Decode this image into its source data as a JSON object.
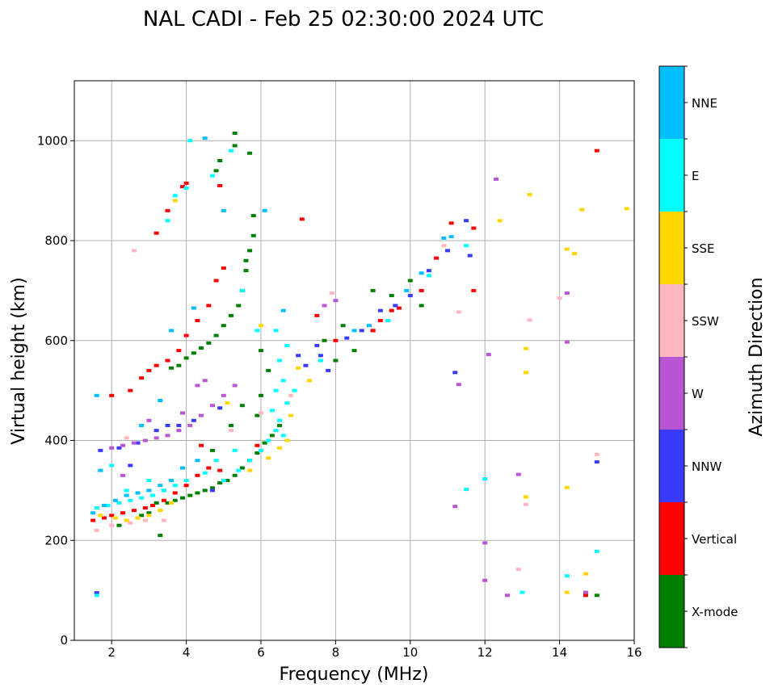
{
  "chart_data": {
    "type": "scatter",
    "title": "NAL CADI - Feb 25 02:30:00 2024 UTC",
    "xlabel": "Frequency (MHz)",
    "ylabel": "Virtual height (km)",
    "xlim": [
      1,
      16
    ],
    "ylim": [
      0,
      1120
    ],
    "xticks": [
      2,
      4,
      6,
      8,
      10,
      12,
      14,
      16
    ],
    "yticks": [
      0,
      200,
      400,
      600,
      800,
      1000
    ],
    "grid": true,
    "colorbar": {
      "label": "Azimuth Direction",
      "categories": [
        {
          "name": "X-mode",
          "color": "#008000"
        },
        {
          "name": "Vertical",
          "color": "#ff0000"
        },
        {
          "name": "NNW",
          "color": "#3a3aff"
        },
        {
          "name": "W",
          "color": "#ba55d3"
        },
        {
          "name": "SSW",
          "color": "#ffb6c1"
        },
        {
          "name": "SSE",
          "color": "#ffd700"
        },
        {
          "name": "E",
          "color": "#00ffff"
        },
        {
          "name": "NNE",
          "color": "#00bfff"
        }
      ]
    },
    "series": [
      {
        "name": "X-mode",
        "points": [
          [
            3.2,
            275
          ],
          [
            3.5,
            275
          ],
          [
            3.7,
            280
          ],
          [
            3.9,
            285
          ],
          [
            4.1,
            290
          ],
          [
            4.3,
            295
          ],
          [
            4.5,
            300
          ],
          [
            4.7,
            305
          ],
          [
            4.9,
            315
          ],
          [
            5.1,
            320
          ],
          [
            5.3,
            330
          ],
          [
            5.5,
            345
          ],
          [
            5.7,
            360
          ],
          [
            5.9,
            375
          ],
          [
            6.1,
            395
          ],
          [
            6.3,
            410
          ],
          [
            6.5,
            430
          ],
          [
            3.6,
            545
          ],
          [
            3.8,
            550
          ],
          [
            4.0,
            565
          ],
          [
            4.2,
            575
          ],
          [
            4.4,
            585
          ],
          [
            4.6,
            595
          ],
          [
            4.8,
            610
          ],
          [
            5.0,
            630
          ],
          [
            5.2,
            650
          ],
          [
            5.4,
            670
          ],
          [
            5.5,
            700
          ],
          [
            5.6,
            740
          ],
          [
            5.7,
            780
          ],
          [
            5.8,
            810
          ],
          [
            5.6,
            760
          ],
          [
            5.3,
            990
          ],
          [
            4.9,
            960
          ],
          [
            4.8,
            940
          ],
          [
            5.3,
            1015
          ],
          [
            3.3,
            210
          ],
          [
            6.0,
            580
          ],
          [
            6.2,
            540
          ],
          [
            6.0,
            490
          ],
          [
            5.9,
            450
          ],
          [
            8.0,
            560
          ],
          [
            8.5,
            580
          ],
          [
            9.0,
            620
          ],
          [
            9.0,
            700
          ],
          [
            9.5,
            690
          ],
          [
            10.0,
            720
          ],
          [
            10.3,
            670
          ],
          [
            8.2,
            630
          ],
          [
            7.7,
            600
          ],
          [
            5.7,
            975
          ],
          [
            5.8,
            850
          ],
          [
            5.5,
            470
          ],
          [
            5.2,
            430
          ],
          [
            4.7,
            380
          ],
          [
            2.2,
            230
          ],
          [
            2.8,
            250
          ],
          [
            3.0,
            255
          ],
          [
            15.0,
            90
          ]
        ]
      },
      {
        "name": "Vertical",
        "points": [
          [
            1.5,
            240
          ],
          [
            1.8,
            245
          ],
          [
            2.0,
            250
          ],
          [
            2.3,
            255
          ],
          [
            2.6,
            260
          ],
          [
            2.9,
            265
          ],
          [
            3.1,
            270
          ],
          [
            3.4,
            280
          ],
          [
            3.7,
            295
          ],
          [
            4.0,
            310
          ],
          [
            4.3,
            330
          ],
          [
            4.6,
            345
          ],
          [
            4.9,
            340
          ],
          [
            2.5,
            500
          ],
          [
            2.8,
            525
          ],
          [
            3.0,
            540
          ],
          [
            3.2,
            550
          ],
          [
            3.5,
            560
          ],
          [
            3.8,
            580
          ],
          [
            4.0,
            610
          ],
          [
            4.3,
            640
          ],
          [
            4.6,
            670
          ],
          [
            4.8,
            720
          ],
          [
            5.0,
            745
          ],
          [
            3.2,
            815
          ],
          [
            3.5,
            860
          ],
          [
            4.0,
            915
          ],
          [
            3.9,
            908
          ],
          [
            4.9,
            910
          ],
          [
            7.5,
            650
          ],
          [
            8.0,
            600
          ],
          [
            9.0,
            620
          ],
          [
            9.2,
            640
          ],
          [
            9.5,
            660
          ],
          [
            9.7,
            665
          ],
          [
            10.3,
            700
          ],
          [
            10.7,
            765
          ],
          [
            11.1,
            835
          ],
          [
            11.7,
            825
          ],
          [
            11.7,
            700
          ],
          [
            14.7,
            90
          ],
          [
            15.0,
            980
          ],
          [
            7.1,
            843
          ],
          [
            5.9,
            390
          ],
          [
            4.4,
            390
          ],
          [
            2.0,
            490
          ]
        ]
      },
      {
        "name": "NNW",
        "points": [
          [
            1.6,
            95
          ],
          [
            2.2,
            385
          ],
          [
            2.7,
            395
          ],
          [
            3.2,
            420
          ],
          [
            3.5,
            430
          ],
          [
            3.8,
            430
          ],
          [
            4.2,
            440
          ],
          [
            4.9,
            465
          ],
          [
            7.2,
            550
          ],
          [
            7.5,
            590
          ],
          [
            7.8,
            540
          ],
          [
            8.3,
            605
          ],
          [
            8.7,
            620
          ],
          [
            9.2,
            660
          ],
          [
            9.6,
            670
          ],
          [
            10.0,
            690
          ],
          [
            10.5,
            740
          ],
          [
            11.0,
            780
          ],
          [
            11.5,
            840
          ],
          [
            11.6,
            770
          ],
          [
            11.2,
            536
          ],
          [
            15.0,
            357
          ],
          [
            2.5,
            350
          ],
          [
            3.4,
            300
          ],
          [
            4.7,
            300
          ],
          [
            1.7,
            380
          ],
          [
            7.0,
            570
          ],
          [
            7.6,
            570
          ]
        ]
      },
      {
        "name": "W",
        "points": [
          [
            2.0,
            385
          ],
          [
            2.3,
            390
          ],
          [
            2.6,
            395
          ],
          [
            2.9,
            400
          ],
          [
            3.2,
            405
          ],
          [
            3.5,
            410
          ],
          [
            3.8,
            420
          ],
          [
            4.1,
            430
          ],
          [
            4.4,
            450
          ],
          [
            4.7,
            470
          ],
          [
            5.0,
            490
          ],
          [
            5.3,
            510
          ],
          [
            3.0,
            440
          ],
          [
            3.9,
            455
          ],
          [
            4.3,
            510
          ],
          [
            4.5,
            520
          ],
          [
            7.7,
            670
          ],
          [
            8.0,
            680
          ],
          [
            12.3,
            923
          ],
          [
            14.2,
            695
          ],
          [
            14.2,
            597
          ],
          [
            12.1,
            572
          ],
          [
            11.3,
            512
          ],
          [
            12.9,
            332
          ],
          [
            11.2,
            268
          ],
          [
            12.0,
            195
          ],
          [
            12.0,
            120
          ],
          [
            12.6,
            90
          ],
          [
            14.7,
            96
          ],
          [
            2.3,
            330
          ]
        ]
      },
      {
        "name": "SSW",
        "points": [
          [
            1.6,
            220
          ],
          [
            2.0,
            230
          ],
          [
            2.5,
            235
          ],
          [
            2.9,
            240
          ],
          [
            2.4,
            405
          ],
          [
            2.6,
            780
          ],
          [
            5.2,
            420
          ],
          [
            6.0,
            455
          ],
          [
            7.9,
            695
          ],
          [
            10.9,
            790
          ],
          [
            11.3,
            657
          ],
          [
            13.1,
            272
          ],
          [
            15.0,
            372
          ],
          [
            12.9,
            142
          ],
          [
            13.2,
            641
          ],
          [
            14.0,
            685
          ],
          [
            6.8,
            490
          ],
          [
            3.4,
            240
          ]
        ]
      },
      {
        "name": "SSE",
        "points": [
          [
            1.7,
            250
          ],
          [
            2.1,
            245
          ],
          [
            2.4,
            240
          ],
          [
            2.7,
            245
          ],
          [
            3.0,
            250
          ],
          [
            3.3,
            260
          ],
          [
            3.6,
            275
          ],
          [
            6.2,
            365
          ],
          [
            6.5,
            385
          ],
          [
            6.7,
            400
          ],
          [
            6.8,
            450
          ],
          [
            7.0,
            545
          ],
          [
            7.3,
            520
          ],
          [
            3.7,
            880
          ],
          [
            5.1,
            475
          ],
          [
            5.7,
            340
          ],
          [
            12.4,
            840
          ],
          [
            13.2,
            892
          ],
          [
            14.6,
            862
          ],
          [
            15.8,
            864
          ],
          [
            14.2,
            783
          ],
          [
            14.4,
            774
          ],
          [
            13.1,
            584
          ],
          [
            13.1,
            536
          ],
          [
            13.1,
            287
          ],
          [
            14.2,
            306
          ],
          [
            14.2,
            96
          ],
          [
            14.7,
            133
          ],
          [
            6.0,
            630
          ]
        ]
      },
      {
        "name": "E",
        "points": [
          [
            1.6,
            265
          ],
          [
            1.9,
            270
          ],
          [
            2.2,
            275
          ],
          [
            2.5,
            280
          ],
          [
            2.8,
            285
          ],
          [
            3.1,
            290
          ],
          [
            3.4,
            300
          ],
          [
            3.7,
            310
          ],
          [
            4.0,
            320
          ],
          [
            4.5,
            335
          ],
          [
            5.0,
            320
          ],
          [
            5.4,
            340
          ],
          [
            5.7,
            360
          ],
          [
            6.0,
            380
          ],
          [
            6.2,
            400
          ],
          [
            6.4,
            420
          ],
          [
            6.6,
            410
          ],
          [
            6.3,
            460
          ],
          [
            6.5,
            440
          ],
          [
            6.7,
            475
          ],
          [
            6.9,
            500
          ],
          [
            6.4,
            500
          ],
          [
            6.6,
            520
          ],
          [
            6.5,
            560
          ],
          [
            6.7,
            590
          ],
          [
            1.6,
            90
          ],
          [
            2.0,
            350
          ],
          [
            3.5,
            840
          ],
          [
            3.7,
            890
          ],
          [
            4.0,
            905
          ],
          [
            4.7,
            930
          ],
          [
            5.2,
            980
          ],
          [
            4.1,
            1000
          ],
          [
            5.5,
            700
          ],
          [
            5.9,
            620
          ],
          [
            7.6,
            560
          ],
          [
            9.4,
            640
          ],
          [
            10.5,
            730
          ],
          [
            11.5,
            790
          ],
          [
            12.0,
            323
          ],
          [
            11.5,
            302
          ],
          [
            13.0,
            96
          ],
          [
            14.2,
            129
          ],
          [
            15.0,
            178
          ],
          [
            6.4,
            620
          ],
          [
            2.4,
            300
          ],
          [
            3.0,
            320
          ],
          [
            4.8,
            360
          ],
          [
            5.3,
            380
          ]
        ]
      },
      {
        "name": "NNE",
        "points": [
          [
            1.5,
            255
          ],
          [
            1.8,
            270
          ],
          [
            2.1,
            280
          ],
          [
            2.4,
            290
          ],
          [
            2.7,
            295
          ],
          [
            3.0,
            300
          ],
          [
            3.3,
            310
          ],
          [
            3.6,
            320
          ],
          [
            3.9,
            345
          ],
          [
            4.3,
            360
          ],
          [
            1.7,
            340
          ],
          [
            1.6,
            490
          ],
          [
            2.8,
            430
          ],
          [
            3.3,
            480
          ],
          [
            3.6,
            620
          ],
          [
            4.2,
            665
          ],
          [
            5.0,
            860
          ],
          [
            4.5,
            1005
          ],
          [
            8.5,
            620
          ],
          [
            8.9,
            630
          ],
          [
            9.9,
            700
          ],
          [
            10.3,
            735
          ],
          [
            10.9,
            805
          ],
          [
            11.1,
            808
          ],
          [
            6.6,
            660
          ],
          [
            6.1,
            860
          ]
        ]
      }
    ]
  }
}
